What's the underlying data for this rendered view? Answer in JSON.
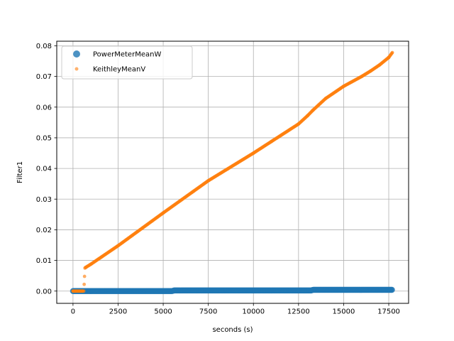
{
  "chart_data": {
    "type": "scatter",
    "xlabel": "seconds (s)",
    "ylabel": "Filter1",
    "xlim": [
      -900,
      18600
    ],
    "ylim": [
      -0.004,
      0.0815
    ],
    "xticks": [
      0,
      2500,
      5000,
      7500,
      10000,
      12500,
      15000,
      17500
    ],
    "yticks": [
      0.0,
      0.01,
      0.02,
      0.03,
      0.04,
      0.05,
      0.06,
      0.07,
      0.08
    ],
    "x_tick_labels": [
      "0",
      "2500",
      "5000",
      "7500",
      "10000",
      "12500",
      "15000",
      "17500"
    ],
    "y_tick_labels": [
      "0.00",
      "0.01",
      "0.02",
      "0.03",
      "0.04",
      "0.05",
      "0.06",
      "0.07",
      "0.08"
    ],
    "grid": true,
    "legend_position": "upper-left",
    "series": [
      {
        "name": "PowerMeterMeanW",
        "color": "#1f77b4",
        "marker": "circle-large",
        "x": [
          0,
          500,
          1000,
          2000,
          3000,
          4000,
          5000,
          5500,
          5600,
          7000,
          9000,
          11000,
          13000,
          13200,
          13300,
          15000,
          16500,
          17700
        ],
        "y": [
          0.0,
          0.0,
          0.0,
          0.0,
          0.0,
          0.0,
          0.0,
          0.0,
          0.0002,
          0.0002,
          0.0002,
          0.0002,
          0.0002,
          0.0002,
          0.0004,
          0.0004,
          0.0004,
          0.0004
        ]
      },
      {
        "name": "KeithleyMeanV",
        "color": "#ff7f0e",
        "marker": "circle-small",
        "x": [
          0,
          100,
          200,
          300,
          400,
          500,
          550,
          600,
          620,
          640,
          660,
          700,
          1000,
          2500,
          5000,
          7500,
          10000,
          11000,
          12500,
          13000,
          13300,
          14000,
          15000,
          16000,
          16500,
          17000,
          17500,
          17700
        ],
        "y": [
          0.0,
          0.0,
          0.0,
          0.0,
          0.0,
          0.0,
          0.0,
          0.0,
          0.0022,
          0.0048,
          0.0075,
          0.0077,
          0.0088,
          0.0148,
          0.0255,
          0.036,
          0.045,
          0.0488,
          0.0545,
          0.0572,
          0.059,
          0.0628,
          0.0668,
          0.07,
          0.0718,
          0.0738,
          0.0762,
          0.0778
        ]
      }
    ]
  }
}
